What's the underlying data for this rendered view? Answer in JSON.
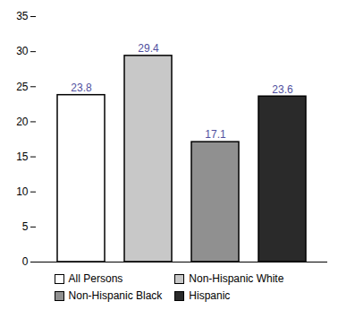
{
  "chart_data": {
    "type": "bar",
    "categories": [
      "All Persons",
      "Non-Hispanic White",
      "Non-Hispanic Black",
      "Hispanic"
    ],
    "values": [
      23.8,
      29.4,
      17.1,
      23.6
    ],
    "colors": [
      "#ffffff",
      "#c8c8c8",
      "#909090",
      "#2a2a2a"
    ],
    "ylim": [
      0,
      35
    ],
    "yticks": [
      0,
      5,
      10,
      15,
      20,
      25,
      30,
      35
    ],
    "grid": false,
    "data_labels": true,
    "tick_labels": "y",
    "legend": "bottom"
  }
}
